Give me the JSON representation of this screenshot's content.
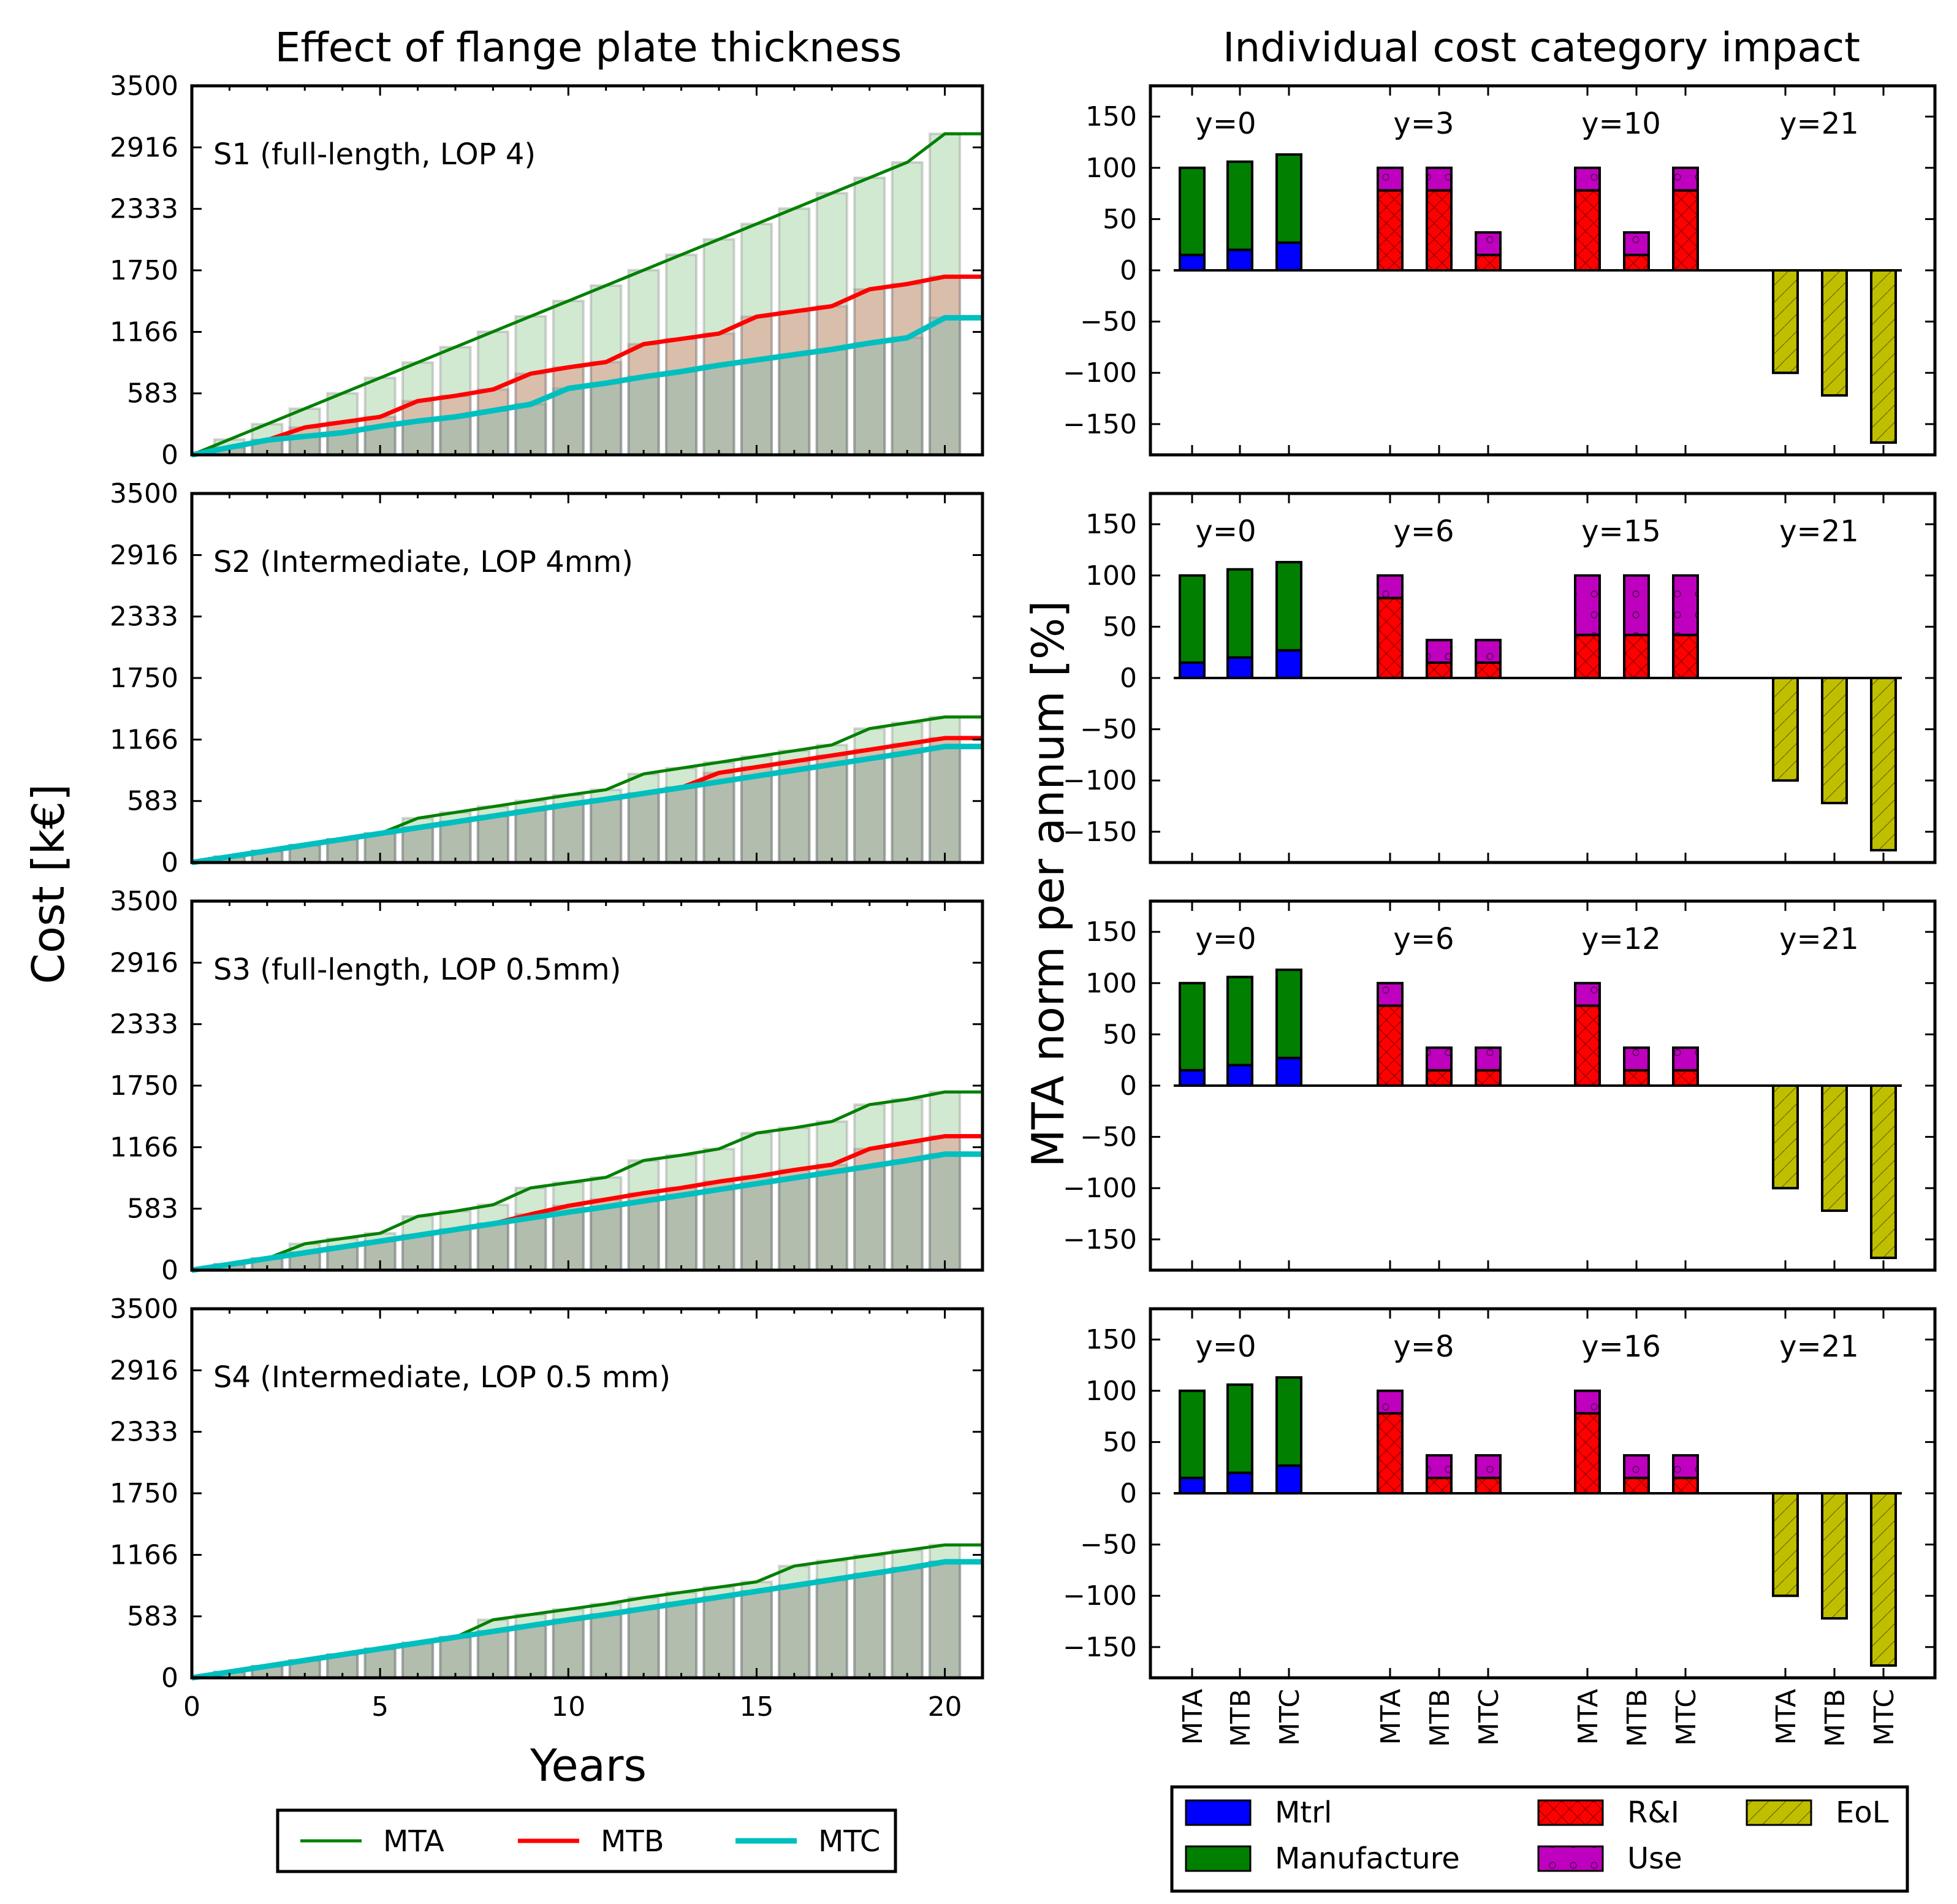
{
  "colors": {
    "MTA": "#008000",
    "MTB": "#ff0000",
    "MTC": "#00bfbf",
    "Mtrl": "#0000ff",
    "Manufacture": "#007f00",
    "R&I": "#ff0000",
    "Use": "#bf00bf",
    "EoL": "#bfbf00"
  },
  "left_titles": {
    "title": "Effect of flange plate thickness",
    "ylabel": "Cost [k€]",
    "xlabel": "Years"
  },
  "right_titles": {
    "title": "Individual cost category impact",
    "ylabel": "MTA norm per annum [%]"
  },
  "left_legend": [
    "MTA",
    "MTB",
    "MTC"
  ],
  "right_legend": [
    "Mtrl",
    "Manufacture",
    "R&I",
    "Use",
    "EoL"
  ],
  "right_xticklabels": [
    "MTA",
    "MTB",
    "MTC",
    "MTA",
    "MTB",
    "MTC",
    "MTA",
    "MTB",
    "MTC",
    "MTA",
    "MTB",
    "MTC"
  ],
  "chart_data": [
    {
      "type": "line",
      "label": "S1 (full-length, LOP 4)",
      "xlim": [
        0,
        21
      ],
      "ylim": [
        0,
        3500
      ],
      "xticks": [
        0,
        5,
        10,
        15,
        20
      ],
      "yticks": [
        0,
        583,
        1166,
        1750,
        2333,
        2916,
        3500
      ],
      "x": [
        0,
        1,
        2,
        3,
        4,
        5,
        6,
        7,
        8,
        9,
        10,
        11,
        12,
        13,
        14,
        15,
        16,
        17,
        18,
        19,
        20,
        21
      ],
      "series": [
        {
          "name": "MTA",
          "values": [
            0,
            146,
            292,
            438,
            584,
            730,
            876,
            1022,
            1168,
            1314,
            1460,
            1606,
            1752,
            1898,
            2044,
            2190,
            2336,
            2482,
            2628,
            2774,
            3045,
            3045
          ]
        },
        {
          "name": "MTB",
          "values": [
            0,
            70,
            140,
            260,
            310,
            360,
            510,
            560,
            620,
            770,
            830,
            880,
            1050,
            1100,
            1150,
            1310,
            1360,
            1410,
            1570,
            1620,
            1690,
            1690
          ]
        },
        {
          "name": "MTC",
          "values": [
            0,
            70,
            140,
            175,
            210,
            270,
            320,
            360,
            420,
            480,
            630,
            680,
            740,
            790,
            850,
            900,
            950,
            1000,
            1060,
            1110,
            1300,
            1300
          ]
        }
      ]
    },
    {
      "type": "line",
      "label": "S2 (Intermediate, LOP 4mm)",
      "xlim": [
        0,
        21
      ],
      "ylim": [
        0,
        3500
      ],
      "xticks": [
        0,
        5,
        10,
        15,
        20
      ],
      "yticks": [
        0,
        583,
        1166,
        1750,
        2333,
        2916,
        3500
      ],
      "x": [
        0,
        1,
        2,
        3,
        4,
        5,
        6,
        7,
        8,
        9,
        10,
        11,
        12,
        13,
        14,
        15,
        16,
        17,
        18,
        19,
        20,
        21
      ],
      "series": [
        {
          "name": "MTA",
          "values": [
            0,
            55,
            110,
            165,
            220,
            275,
            420,
            475,
            530,
            585,
            640,
            690,
            840,
            895,
            950,
            1005,
            1060,
            1115,
            1270,
            1325,
            1380,
            1380
          ]
        },
        {
          "name": "MTB",
          "values": [
            0,
            55,
            110,
            165,
            220,
            275,
            330,
            385,
            440,
            495,
            550,
            600,
            655,
            710,
            850,
            905,
            960,
            1015,
            1070,
            1125,
            1180,
            1180
          ]
        },
        {
          "name": "MTC",
          "values": [
            0,
            55,
            110,
            165,
            220,
            275,
            330,
            385,
            440,
            495,
            550,
            600,
            655,
            710,
            765,
            820,
            875,
            930,
            985,
            1040,
            1100,
            1100
          ]
        }
      ]
    },
    {
      "type": "line",
      "label": "S3 (full-length, LOP 0.5mm)",
      "xlim": [
        0,
        21
      ],
      "ylim": [
        0,
        3500
      ],
      "xticks": [
        0,
        5,
        10,
        15,
        20
      ],
      "yticks": [
        0,
        583,
        1166,
        1750,
        2333,
        2916,
        3500
      ],
      "x": [
        0,
        1,
        2,
        3,
        4,
        5,
        6,
        7,
        8,
        9,
        10,
        11,
        12,
        13,
        14,
        15,
        16,
        17,
        18,
        19,
        20,
        21
      ],
      "series": [
        {
          "name": "MTA",
          "values": [
            0,
            55,
            110,
            250,
            300,
            350,
            510,
            560,
            620,
            780,
            830,
            880,
            1040,
            1090,
            1150,
            1300,
            1350,
            1410,
            1570,
            1620,
            1690,
            1690
          ]
        },
        {
          "name": "MTB",
          "values": [
            0,
            55,
            110,
            165,
            220,
            275,
            330,
            385,
            440,
            530,
            610,
            670,
            730,
            780,
            840,
            890,
            950,
            1000,
            1150,
            1210,
            1270,
            1270
          ]
        },
        {
          "name": "MTC",
          "values": [
            0,
            55,
            110,
            165,
            220,
            275,
            330,
            385,
            440,
            495,
            550,
            600,
            655,
            710,
            765,
            820,
            875,
            930,
            985,
            1040,
            1100,
            1100
          ]
        }
      ]
    },
    {
      "type": "line",
      "label": "S4 (Intermediate, LOP 0.5 mm)",
      "xlim": [
        0,
        21
      ],
      "ylim": [
        0,
        3500
      ],
      "xticks": [
        0,
        5,
        10,
        15,
        20
      ],
      "yticks": [
        0,
        583,
        1166,
        1750,
        2333,
        2916,
        3500
      ],
      "x": [
        0,
        1,
        2,
        3,
        4,
        5,
        6,
        7,
        8,
        9,
        10,
        11,
        12,
        13,
        14,
        15,
        16,
        17,
        18,
        19,
        20,
        21
      ],
      "series": [
        {
          "name": "MTA",
          "values": [
            0,
            55,
            110,
            165,
            220,
            275,
            330,
            385,
            550,
            600,
            650,
            700,
            760,
            810,
            860,
            910,
            1060,
            1110,
            1160,
            1210,
            1260,
            1260
          ]
        },
        {
          "name": "MTB",
          "values": [
            0,
            55,
            110,
            165,
            220,
            275,
            330,
            385,
            440,
            495,
            550,
            600,
            655,
            710,
            765,
            820,
            875,
            930,
            985,
            1040,
            1100,
            1100
          ]
        },
        {
          "name": "MTC",
          "values": [
            0,
            55,
            110,
            165,
            220,
            275,
            330,
            385,
            440,
            495,
            550,
            600,
            655,
            710,
            765,
            820,
            875,
            930,
            985,
            1040,
            1100,
            1100
          ]
        }
      ]
    },
    {
      "type": "bar",
      "stacked": true,
      "ylim": [
        -180,
        180
      ],
      "yticks": [
        -150,
        -100,
        -50,
        0,
        50,
        100,
        150
      ],
      "groups": [
        "y=0",
        "y=3",
        "y=10",
        "y=21"
      ],
      "categories": [
        "MTA",
        "MTB",
        "MTC",
        "MTA",
        "MTB",
        "MTC",
        "MTA",
        "MTB",
        "MTC",
        "MTA",
        "MTB",
        "MTC"
      ],
      "series": [
        {
          "name": "Mtrl",
          "values": [
            15,
            20,
            27,
            0,
            0,
            0,
            0,
            0,
            0,
            0,
            0,
            0
          ]
        },
        {
          "name": "Manufacture",
          "values": [
            85,
            86,
            86,
            0,
            0,
            0,
            0,
            0,
            0,
            0,
            0,
            0
          ]
        },
        {
          "name": "R&I",
          "values": [
            0,
            0,
            0,
            78,
            78,
            15,
            78,
            15,
            78,
            0,
            0,
            0
          ]
        },
        {
          "name": "Use",
          "values": [
            0,
            0,
            0,
            22,
            22,
            22,
            22,
            22,
            22,
            0,
            0,
            0
          ]
        },
        {
          "name": "EoL",
          "values": [
            0,
            0,
            0,
            0,
            0,
            0,
            0,
            0,
            0,
            -100,
            -122,
            -168
          ]
        }
      ]
    },
    {
      "type": "bar",
      "stacked": true,
      "ylim": [
        -180,
        180
      ],
      "yticks": [
        -150,
        -100,
        -50,
        0,
        50,
        100,
        150
      ],
      "groups": [
        "y=0",
        "y=6",
        "y=15",
        "y=21"
      ],
      "categories": [
        "MTA",
        "MTB",
        "MTC",
        "MTA",
        "MTB",
        "MTC",
        "MTA",
        "MTB",
        "MTC",
        "MTA",
        "MTB",
        "MTC"
      ],
      "series": [
        {
          "name": "Mtrl",
          "values": [
            15,
            20,
            27,
            0,
            0,
            0,
            0,
            0,
            0,
            0,
            0,
            0
          ]
        },
        {
          "name": "Manufacture",
          "values": [
            85,
            86,
            86,
            0,
            0,
            0,
            0,
            0,
            0,
            0,
            0,
            0
          ]
        },
        {
          "name": "R&I",
          "values": [
            0,
            0,
            0,
            78,
            15,
            15,
            42,
            42,
            42,
            0,
            0,
            0
          ]
        },
        {
          "name": "Use",
          "values": [
            0,
            0,
            0,
            22,
            22,
            22,
            58,
            58,
            58,
            0,
            0,
            0
          ]
        },
        {
          "name": "EoL",
          "values": [
            0,
            0,
            0,
            0,
            0,
            0,
            0,
            0,
            0,
            -100,
            -122,
            -168
          ]
        }
      ]
    },
    {
      "type": "bar",
      "stacked": true,
      "ylim": [
        -180,
        180
      ],
      "yticks": [
        -150,
        -100,
        -50,
        0,
        50,
        100,
        150
      ],
      "groups": [
        "y=0",
        "y=6",
        "y=12",
        "y=21"
      ],
      "categories": [
        "MTA",
        "MTB",
        "MTC",
        "MTA",
        "MTB",
        "MTC",
        "MTA",
        "MTB",
        "MTC",
        "MTA",
        "MTB",
        "MTC"
      ],
      "series": [
        {
          "name": "Mtrl",
          "values": [
            15,
            20,
            27,
            0,
            0,
            0,
            0,
            0,
            0,
            0,
            0,
            0
          ]
        },
        {
          "name": "Manufacture",
          "values": [
            85,
            86,
            86,
            0,
            0,
            0,
            0,
            0,
            0,
            0,
            0,
            0
          ]
        },
        {
          "name": "R&I",
          "values": [
            0,
            0,
            0,
            78,
            15,
            15,
            78,
            15,
            15,
            0,
            0,
            0
          ]
        },
        {
          "name": "Use",
          "values": [
            0,
            0,
            0,
            22,
            22,
            22,
            22,
            22,
            22,
            0,
            0,
            0
          ]
        },
        {
          "name": "EoL",
          "values": [
            0,
            0,
            0,
            0,
            0,
            0,
            0,
            0,
            0,
            -100,
            -122,
            -168
          ]
        }
      ]
    },
    {
      "type": "bar",
      "stacked": true,
      "ylim": [
        -180,
        180
      ],
      "yticks": [
        -150,
        -100,
        -50,
        0,
        50,
        100,
        150
      ],
      "groups": [
        "y=0",
        "y=8",
        "y=16",
        "y=21"
      ],
      "categories": [
        "MTA",
        "MTB",
        "MTC",
        "MTA",
        "MTB",
        "MTC",
        "MTA",
        "MTB",
        "MTC",
        "MTA",
        "MTB",
        "MTC"
      ],
      "series": [
        {
          "name": "Mtrl",
          "values": [
            15,
            20,
            27,
            0,
            0,
            0,
            0,
            0,
            0,
            0,
            0,
            0
          ]
        },
        {
          "name": "Manufacture",
          "values": [
            85,
            86,
            86,
            0,
            0,
            0,
            0,
            0,
            0,
            0,
            0,
            0
          ]
        },
        {
          "name": "R&I",
          "values": [
            0,
            0,
            0,
            78,
            15,
            15,
            78,
            15,
            15,
            0,
            0,
            0
          ]
        },
        {
          "name": "Use",
          "values": [
            0,
            0,
            0,
            22,
            22,
            22,
            22,
            22,
            22,
            0,
            0,
            0
          ]
        },
        {
          "name": "EoL",
          "values": [
            0,
            0,
            0,
            0,
            0,
            0,
            0,
            0,
            0,
            -100,
            -122,
            -168
          ]
        }
      ]
    }
  ]
}
